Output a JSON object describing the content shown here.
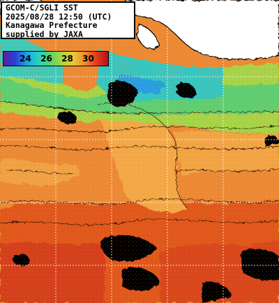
{
  "info_box": {
    "lines": [
      "GCOM-C/SGLI SST",
      "2025/08/28 12:50 (UTC)",
      "Kanagawa Prefecture",
      "supplied by JAXA"
    ]
  },
  "colorbar": {
    "ticks": [
      "24",
      "26",
      "28",
      "30"
    ],
    "stops": [
      "#5a1ea0",
      "#2a3fd8",
      "#19a3e6",
      "#2bd0c4",
      "#59d36a",
      "#a7d93d",
      "#e8c93a",
      "#f08a2c",
      "#e23a1c",
      "#b80f18"
    ]
  },
  "legend_colors": {
    "land": "#ffffff",
    "cloud_nodata": "#000000",
    "grid": "#ffffff",
    "contour": "#2a0f00"
  }
}
